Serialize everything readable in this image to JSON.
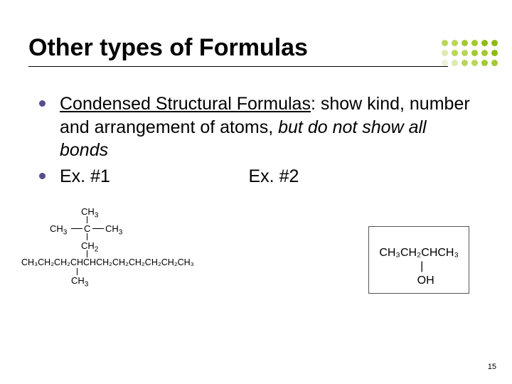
{
  "title": "Other types of Formulas",
  "bullets": [
    {
      "underlined": "Condensed Structural Formulas",
      "rest1": ": show kind, number and arrangement of atoms, ",
      "italic": "but do not show all bonds"
    },
    {
      "ex1": "Ex. #1",
      "ex2": "Ex. #2"
    }
  ],
  "struct1": {
    "top_branch": "CH",
    "top_branch_sub": "3",
    "row2_left": "CH",
    "row2_left_sub": "3",
    "row2_center": "C",
    "row2_right": "CH",
    "row2_right_sub": "3",
    "row3": "CH",
    "row3_sub": "2",
    "main_chain": "CH₃CH₂CH₂CHCHCH₂CH₂CH₂CH₂CH₂CH₃",
    "bottom_branch": "CH",
    "bottom_branch_sub": "3"
  },
  "struct2": {
    "line1": "CH₃CH₂CHCH₃",
    "line2_bar": "|",
    "line2": "OH"
  },
  "dot_colors": {
    "row1": [
      "#b9d65a",
      "#b9d65a",
      "#a4c932",
      "#a4c932",
      "#8fbb12",
      "#8fbb12"
    ],
    "row2": [
      "#dce9b0",
      "#b9d65a",
      "#b9d65a",
      "#a4c932",
      "#a4c932",
      "#8fbb12"
    ],
    "row3": [
      "#eef3d8",
      "#dce9b0",
      "#b9d65a",
      "#b9d65a",
      "#a4c932",
      "#a4c932"
    ]
  },
  "page_number": "15",
  "colors": {
    "bullet": "#5c4b8c",
    "text": "#000000"
  }
}
